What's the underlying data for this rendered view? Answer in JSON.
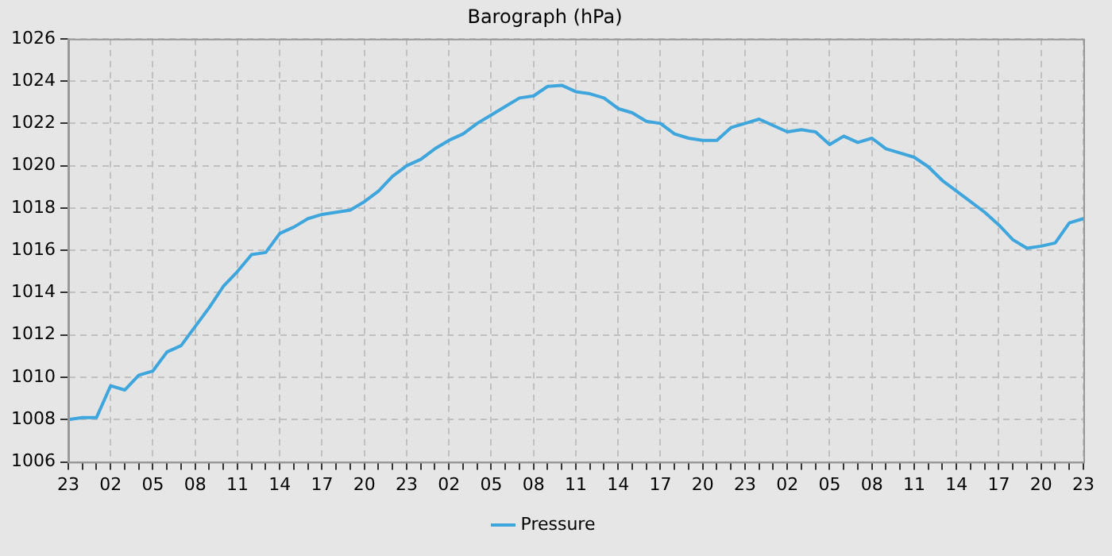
{
  "chart_data": {
    "type": "line",
    "title": "Barograph (hPa)",
    "categories": [
      "23",
      null,
      null,
      "02",
      null,
      null,
      "05",
      null,
      null,
      "08",
      null,
      null,
      "11",
      null,
      null,
      "14",
      null,
      null,
      "17",
      null,
      null,
      "20",
      null,
      null,
      "23",
      null,
      null,
      "02",
      null,
      null,
      "05",
      null,
      null,
      "08",
      null,
      null,
      "11",
      null,
      null,
      "14",
      null,
      null,
      "17",
      null,
      null,
      "20",
      null,
      null,
      "23",
      null,
      null,
      "02",
      null,
      null,
      "05",
      null,
      null,
      "08",
      null,
      null,
      "11",
      null,
      null,
      "14",
      null,
      null,
      "17",
      null,
      null,
      "20",
      null,
      null,
      "23"
    ],
    "series": [
      {
        "name": "Pressure",
        "color": "#3ea6dc",
        "values": [
          1008.0,
          1008.1,
          1008.1,
          1009.6,
          1009.4,
          1010.1,
          1010.3,
          1011.2,
          1011.5,
          1012.4,
          1013.3,
          1014.3,
          1015.0,
          1015.8,
          1015.9,
          1016.8,
          1017.1,
          1017.5,
          1017.7,
          1017.8,
          1017.9,
          1018.3,
          1018.8,
          1019.5,
          1020.0,
          1020.3,
          1020.8,
          1021.2,
          1021.5,
          1022.0,
          1022.4,
          1022.8,
          1023.2,
          1023.3,
          1023.75,
          1023.8,
          1023.5,
          1023.4,
          1023.2,
          1022.7,
          1022.5,
          1022.1,
          1022.0,
          1021.5,
          1021.3,
          1021.2,
          1021.2,
          1021.8,
          1022.0,
          1022.2,
          1021.9,
          1021.6,
          1021.7,
          1021.6,
          1021.0,
          1021.4,
          1021.1,
          1021.3,
          1020.8,
          1020.6,
          1020.4,
          1019.95,
          1019.3,
          1018.8,
          1018.3,
          1017.8,
          1017.2,
          1016.5,
          1016.1,
          1016.2,
          1016.35,
          1017.3,
          1017.5
        ]
      }
    ],
    "ylim": [
      1006,
      1026
    ],
    "yticks": [
      1006,
      1008,
      1010,
      1012,
      1014,
      1016,
      1018,
      1020,
      1022,
      1024,
      1026
    ],
    "grid": true,
    "legend": "bottom",
    "marker": "none",
    "line_style": "solid"
  }
}
